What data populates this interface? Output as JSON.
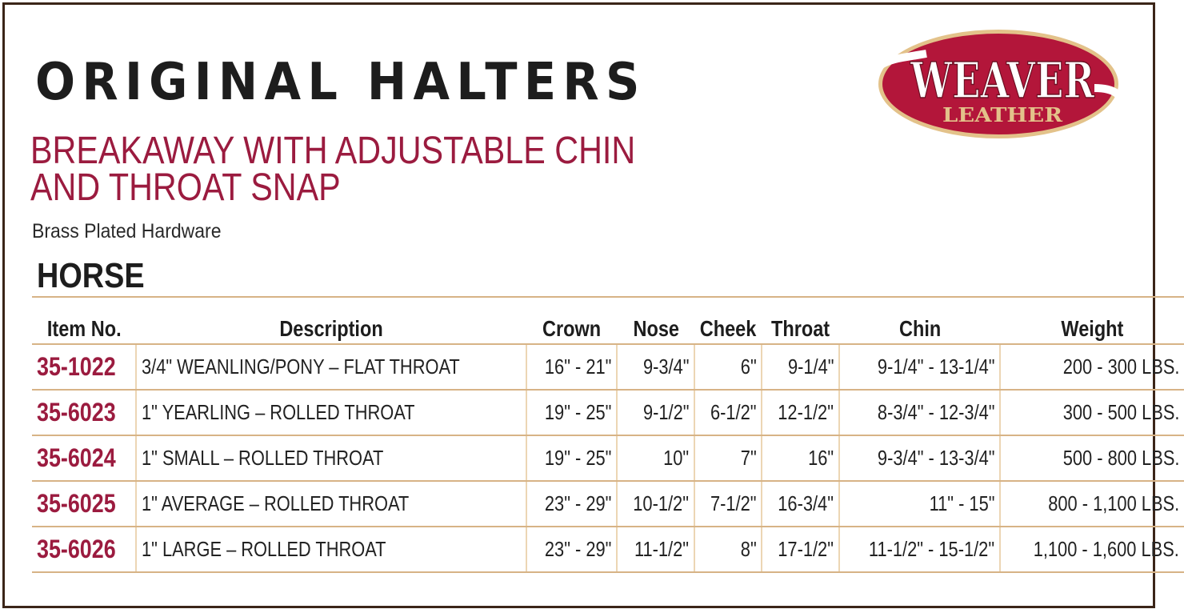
{
  "header": {
    "title": "ORIGINAL HALTERS",
    "subtitle_line1": "BREAKAWAY WITH ADJUSTABLE CHIN",
    "subtitle_line2": "AND THROAT SNAP",
    "hardware": "Brass Plated Hardware",
    "section": "HORSE"
  },
  "logo": {
    "brand": "WEAVER",
    "sub": "LEATHER",
    "colors": {
      "oval": "#b3163a",
      "text": "#ffffff",
      "sub": "#e3c28a"
    }
  },
  "colors": {
    "accent": "#9b1b3f",
    "rule": "#d7b386",
    "frame": "#3b2518"
  },
  "table": {
    "columns": [
      "Item No.",
      "Description",
      "Crown",
      "Nose",
      "Cheek",
      "Throat",
      "Chin",
      "Weight"
    ],
    "rows": [
      [
        "35-1022",
        "3/4\" WEANLING/PONY – FLAT THROAT",
        "16\" - 21\"",
        "9-3/4\"",
        "6\"",
        "9-1/4\"",
        "9-1/4\" - 13-1/4\"",
        "200 - 300 LBS."
      ],
      [
        "35-6023",
        "1\" YEARLING – ROLLED THROAT",
        "19\" - 25\"",
        "9-1/2\"",
        "6-1/2\"",
        "12-1/2\"",
        "8-3/4\" - 12-3/4\"",
        "300 - 500 LBS."
      ],
      [
        "35-6024",
        "1\" SMALL – ROLLED THROAT",
        "19\" - 25\"",
        "10\"",
        "7\"",
        "16\"",
        "9-3/4\" - 13-3/4\"",
        "500 - 800 LBS."
      ],
      [
        "35-6025",
        "1\" AVERAGE – ROLLED THROAT",
        "23\" - 29\"",
        "10-1/2\"",
        "7-1/2\"",
        "16-3/4\"",
        "11\" - 15\"",
        "800 - 1,100 LBS."
      ],
      [
        "35-6026",
        "1\" LARGE – ROLLED THROAT",
        "23\" - 29\"",
        "11-1/2\"",
        "8\"",
        "17-1/2\"",
        "11-1/2\" - 15-1/2\"",
        "1,100 - 1,600 LBS."
      ]
    ]
  }
}
